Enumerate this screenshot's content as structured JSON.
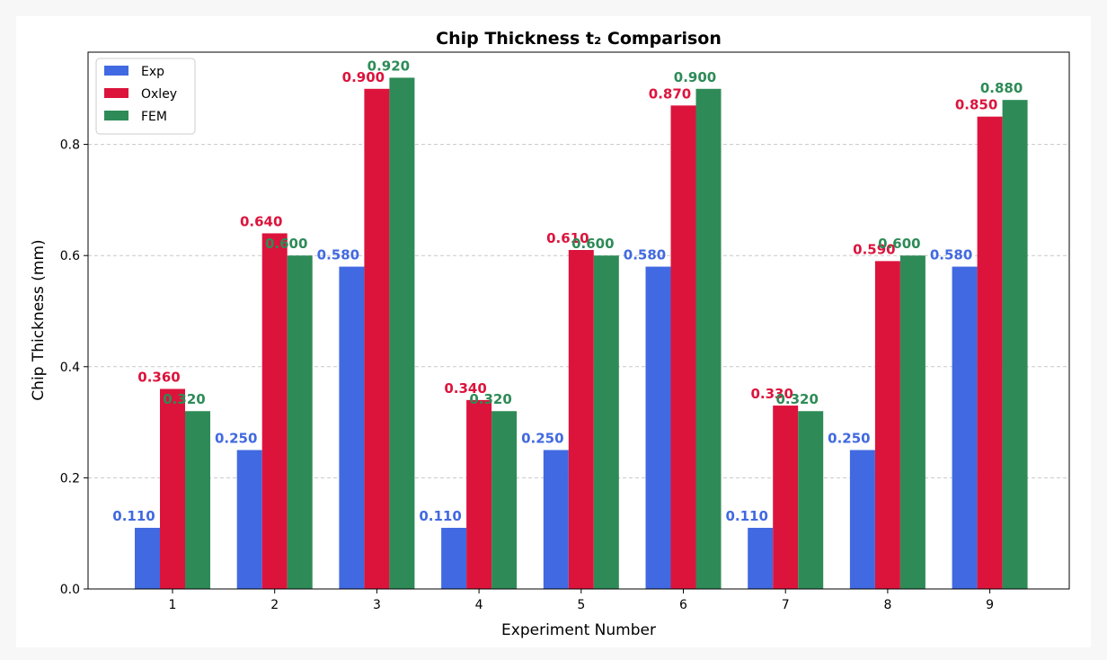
{
  "chart_data": {
    "type": "bar",
    "title": "Chip Thickness t₂ Comparison",
    "xlabel": "Experiment Number",
    "ylabel": "Chip Thickness (mm)",
    "categories": [
      "1",
      "2",
      "3",
      "4",
      "5",
      "6",
      "7",
      "8",
      "9"
    ],
    "series": [
      {
        "name": "Exp",
        "color": "#4169e1",
        "values": [
          0.11,
          0.25,
          0.58,
          0.11,
          0.25,
          0.58,
          0.11,
          0.25,
          0.58
        ]
      },
      {
        "name": "Oxley",
        "color": "#dc143c",
        "values": [
          0.36,
          0.64,
          0.9,
          0.34,
          0.61,
          0.87,
          0.33,
          0.59,
          0.85
        ]
      },
      {
        "name": "FEM",
        "color": "#2e8b57",
        "values": [
          0.32,
          0.6,
          0.92,
          0.32,
          0.6,
          0.9,
          0.32,
          0.6,
          0.88
        ]
      }
    ],
    "ylim": [
      0,
      0.966
    ],
    "yticks": [
      0.0,
      0.2,
      0.4,
      0.6,
      0.8
    ],
    "ytick_labels": [
      "0.0",
      "0.2",
      "0.4",
      "0.6",
      "0.8"
    ],
    "grid": "y-dashed",
    "legend": "top-left",
    "value_labels": true,
    "value_label_format": "3-decimals"
  }
}
